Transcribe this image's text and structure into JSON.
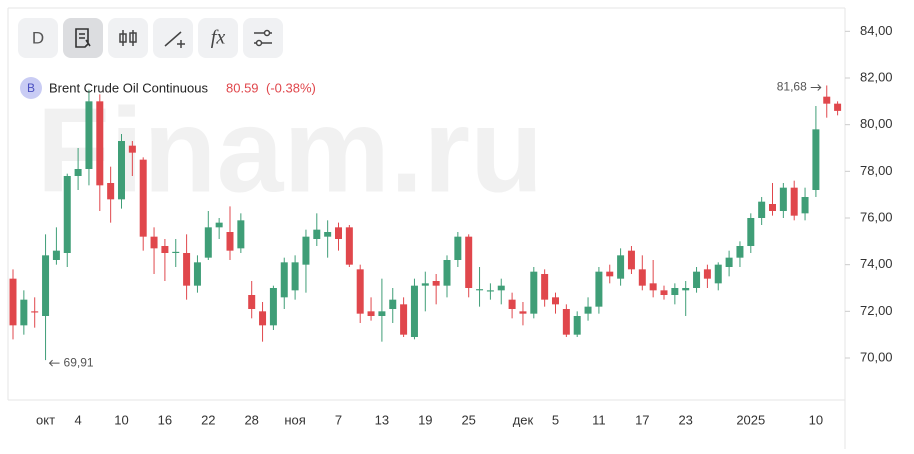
{
  "toolbar": {
    "interval": "D"
  },
  "watermark": "Finam.ru",
  "header": {
    "symbol": "B",
    "name": "Brent Crude Oil Continuous",
    "price": "80.59",
    "change": "(-0.38%)"
  },
  "chart_data": {
    "type": "candlestick",
    "up_color": "#3f9e77",
    "down_color": "#e0474c",
    "categories": [
      null,
      null,
      null,
      "окт",
      null,
      null,
      "4",
      null,
      null,
      null,
      "10",
      null,
      null,
      null,
      "16",
      null,
      null,
      null,
      "22",
      null,
      null,
      null,
      "28",
      null,
      null,
      null,
      "ноя",
      null,
      null,
      null,
      "7",
      null,
      null,
      null,
      "13",
      null,
      null,
      null,
      "19",
      null,
      null,
      null,
      "25",
      null,
      null,
      null,
      null,
      "дек",
      null,
      null,
      "5",
      null,
      null,
      null,
      "11",
      null,
      null,
      null,
      "17",
      null,
      null,
      null,
      "23",
      null,
      null,
      null,
      null,
      null,
      "2025",
      null,
      null,
      null,
      null,
      null,
      "10",
      null,
      null
    ],
    "open": [
      73.4,
      71.4,
      72.0,
      71.8,
      74.2,
      74.5,
      77.8,
      78.1,
      81.0,
      77.5,
      76.8,
      79.1,
      78.5,
      75.2,
      74.8,
      74.5,
      74.5,
      73.1,
      74.3,
      75.6,
      75.4,
      74.7,
      72.7,
      72.0,
      71.4,
      72.6,
      72.9,
      74.0,
      75.1,
      75.2,
      75.6,
      75.6,
      73.8,
      72.0,
      71.8,
      72.1,
      72.3,
      70.9,
      73.1,
      73.3,
      73.1,
      74.2,
      75.2,
      72.9,
      72.85,
      72.9,
      72.5,
      72.0,
      71.9,
      73.6,
      72.6,
      72.1,
      71.0,
      71.9,
      72.2,
      73.7,
      73.4,
      74.6,
      73.8,
      73.2,
      72.9,
      72.7,
      72.9,
      73.0,
      73.8,
      73.2,
      73.9,
      74.3,
      74.8,
      76.0,
      76.6,
      76.3,
      77.3,
      76.2,
      77.2,
      81.2,
      80.9
    ],
    "high": [
      73.8,
      72.9,
      72.6,
      75.3,
      75.6,
      77.9,
      79.0,
      81.5,
      81.3,
      78.2,
      79.6,
      79.3,
      78.6,
      75.6,
      75.1,
      75.1,
      75.3,
      74.4,
      76.3,
      76.0,
      76.5,
      76.2,
      73.3,
      72.4,
      73.1,
      74.3,
      74.4,
      75.5,
      76.2,
      75.9,
      75.8,
      75.7,
      74.0,
      72.6,
      73.4,
      73.0,
      72.6,
      73.4,
      73.7,
      73.6,
      74.4,
      75.4,
      75.3,
      73.9,
      73.2,
      73.4,
      72.8,
      72.4,
      73.9,
      73.8,
      72.8,
      72.3,
      72.0,
      72.6,
      73.9,
      74.0,
      74.7,
      74.8,
      74.4,
      74.2,
      73.1,
      73.2,
      73.3,
      73.9,
      74.0,
      74.1,
      74.6,
      75.0,
      76.2,
      76.9,
      77.5,
      77.5,
      77.6,
      77.3,
      80.8,
      81.68,
      81.0
    ],
    "low": [
      70.8,
      71.0,
      71.3,
      69.91,
      74.0,
      73.9,
      77.2,
      77.4,
      76.3,
      75.8,
      76.4,
      77.8,
      74.6,
      73.6,
      73.3,
      73.9,
      72.5,
      72.8,
      74.2,
      75.1,
      74.2,
      74.5,
      71.7,
      70.7,
      71.2,
      72.1,
      72.5,
      72.8,
      74.8,
      74.3,
      74.6,
      73.9,
      71.5,
      71.6,
      70.7,
      71.5,
      70.9,
      70.8,
      72.0,
      72.3,
      72.6,
      73.9,
      72.6,
      72.2,
      72.5,
      72.3,
      71.7,
      71.4,
      71.7,
      72.2,
      71.9,
      70.9,
      70.9,
      71.6,
      71.9,
      73.2,
      73.1,
      73.6,
      72.9,
      72.6,
      72.5,
      72.3,
      71.8,
      72.8,
      73.0,
      72.9,
      73.5,
      73.9,
      74.5,
      75.7,
      76.1,
      76.0,
      75.9,
      75.9,
      76.9,
      80.3,
      80.4
    ],
    "close": [
      71.4,
      72.5,
      71.95,
      74.4,
      74.6,
      77.8,
      78.1,
      81.0,
      77.4,
      76.8,
      79.3,
      78.8,
      75.2,
      74.7,
      74.5,
      74.55,
      73.1,
      74.1,
      75.6,
      75.8,
      74.6,
      75.9,
      72.1,
      71.4,
      73.0,
      74.1,
      74.1,
      75.2,
      75.5,
      75.4,
      75.1,
      74.0,
      71.9,
      71.8,
      72.0,
      72.5,
      71.0,
      73.1,
      73.2,
      73.1,
      74.2,
      75.2,
      73.0,
      72.95,
      72.9,
      73.1,
      72.1,
      71.9,
      73.7,
      72.5,
      72.3,
      71.0,
      71.8,
      72.2,
      73.7,
      73.5,
      74.4,
      73.8,
      73.1,
      72.9,
      72.7,
      73.0,
      73.0,
      73.7,
      73.4,
      74.0,
      74.3,
      74.8,
      76.0,
      76.7,
      76.3,
      77.3,
      76.1,
      76.9,
      79.8,
      80.9,
      80.59
    ],
    "ylim": [
      68.2,
      85.0
    ],
    "yticks": [
      {
        "value": 70,
        "label": "70,00"
      },
      {
        "value": 72,
        "label": "72,00"
      },
      {
        "value": 74,
        "label": "74,00"
      },
      {
        "value": 76,
        "label": "76,00"
      },
      {
        "value": 78,
        "label": "78,00"
      },
      {
        "value": 80,
        "label": "80,00"
      },
      {
        "value": 82,
        "label": "82,00"
      },
      {
        "value": 84,
        "label": "84,00"
      }
    ],
    "max_label": "81,68",
    "min_label": "69,91"
  }
}
